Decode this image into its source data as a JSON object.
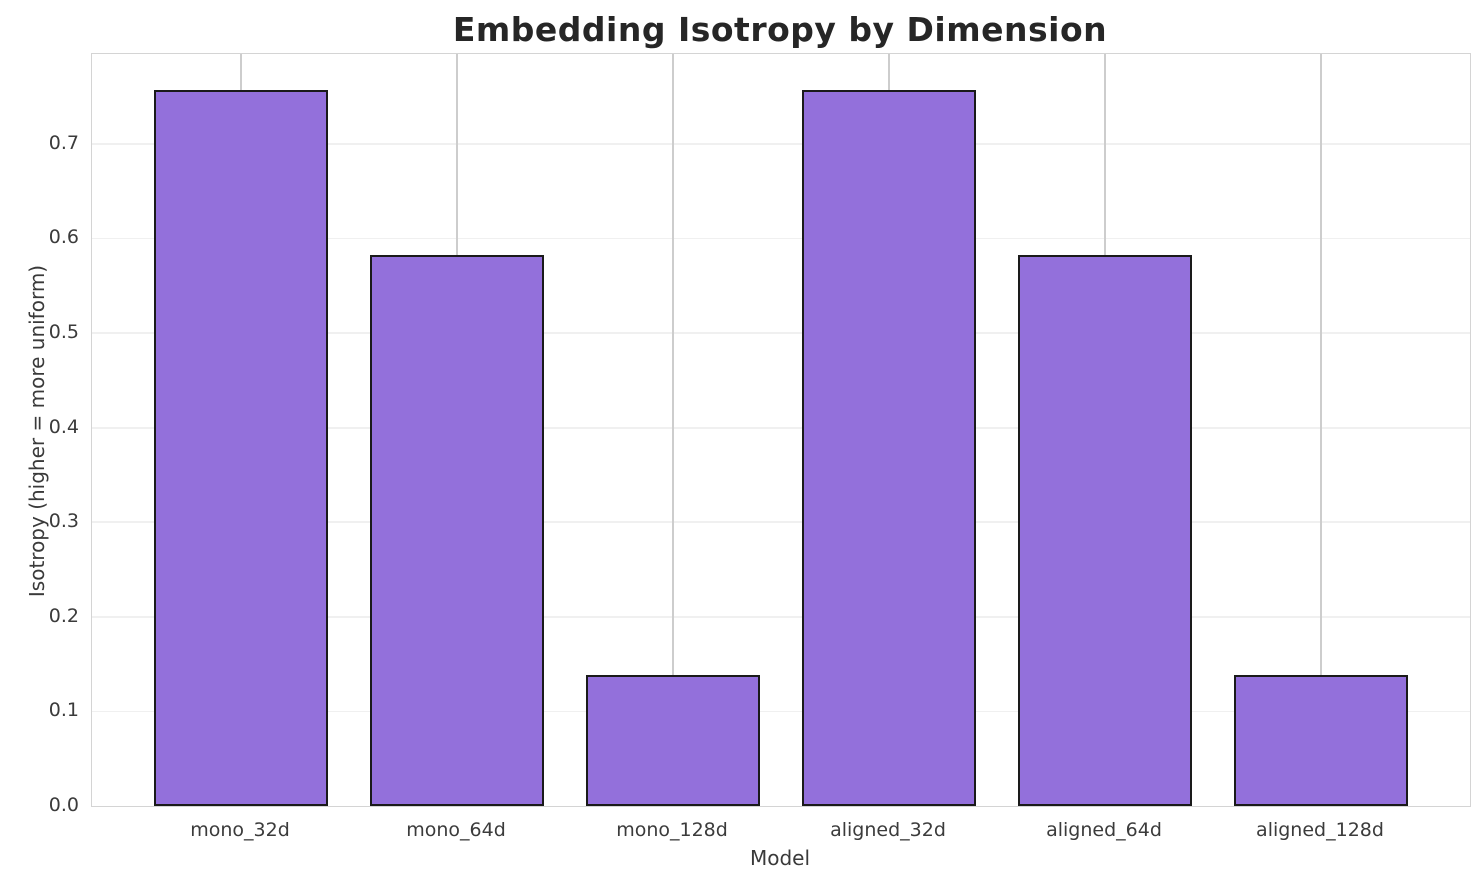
{
  "chart_data": {
    "type": "bar",
    "title": "Embedding Isotropy by Dimension",
    "xlabel": "Model",
    "ylabel": "Isotropy (higher = more uniform)",
    "categories": [
      "mono_32d",
      "mono_64d",
      "mono_128d",
      "aligned_32d",
      "aligned_64d",
      "aligned_128d"
    ],
    "values": [
      0.757,
      0.583,
      0.138,
      0.757,
      0.583,
      0.138
    ],
    "ylim": [
      0,
      0.795
    ],
    "yticks": [
      0.0,
      0.1,
      0.2,
      0.3,
      0.4,
      0.5,
      0.6,
      0.7
    ],
    "ytick_labels": [
      "0.0",
      "0.1",
      "0.2",
      "0.3",
      "0.4",
      "0.5",
      "0.6",
      "0.7"
    ],
    "grid": true,
    "legend": false,
    "bar_color": "#9370db",
    "bar_edge_color": "#1a1a1a"
  }
}
